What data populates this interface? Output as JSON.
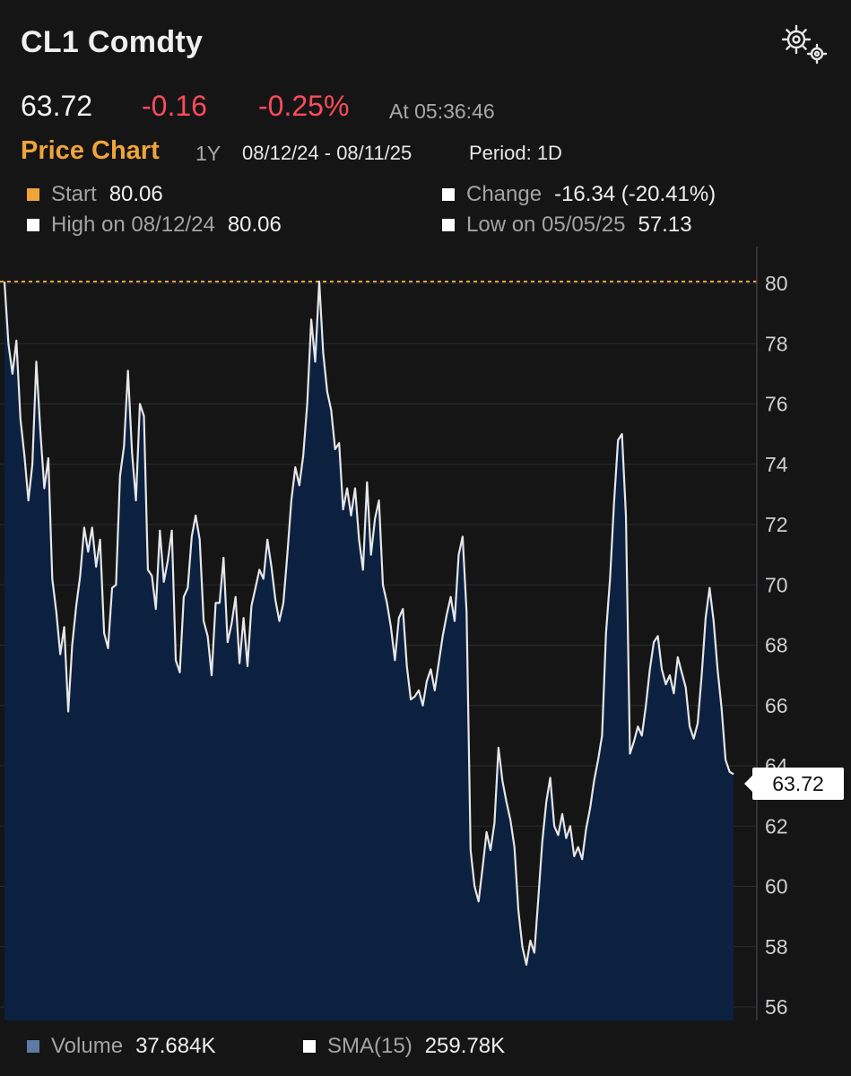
{
  "header": {
    "title": "CL1 Comdty",
    "settings_icon": "gear-icon"
  },
  "quote": {
    "last": "63.72",
    "change": "-0.16",
    "change_pct": "-0.25%",
    "as_of": "At 05:36:46"
  },
  "chart_header": {
    "title": "Price Chart",
    "range": "1Y",
    "dates": "08/12/24 - 08/11/25",
    "period": "Period: 1D"
  },
  "stats": {
    "start_label": "Start",
    "start_value": "80.06",
    "change_label": "Change",
    "change_value": "-16.34 (-20.41%)",
    "high_label": "High on 08/12/24",
    "high_value": "80.06",
    "low_label": "Low on 05/05/25",
    "low_value": "57.13"
  },
  "colors": {
    "start_marker": "#f0a43a",
    "negative": "#ff4a5c",
    "area_fill": "#0c2040",
    "line": "#e6e6e6",
    "volume_marker": "#5b7aa6"
  },
  "price_tag": "63.72",
  "footer": {
    "volume_label": "Volume",
    "volume_value": "37.684K",
    "sma_label": "SMA(15)",
    "sma_value": "259.78K"
  },
  "chart_data": {
    "type": "area",
    "start_reference": 80.06,
    "y_ticks": [
      "80",
      "78",
      "76",
      "74",
      "72",
      "70",
      "68",
      "66",
      "64",
      "62",
      "60",
      "58",
      "56"
    ],
    "ylim": [
      55.6,
      81.2
    ],
    "x_range": [
      "08/12/24",
      "08/11/25"
    ],
    "values": [
      80.06,
      78.0,
      77.0,
      78.1,
      75.5,
      74.3,
      72.8,
      74.0,
      77.4,
      75.1,
      73.2,
      74.2,
      70.2,
      69.1,
      67.7,
      68.6,
      65.8,
      68.0,
      69.3,
      70.3,
      71.9,
      71.1,
      71.9,
      70.6,
      71.5,
      68.4,
      67.9,
      69.9,
      70.0,
      73.6,
      74.6,
      77.1,
      74.4,
      72.8,
      76.0,
      75.6,
      70.5,
      70.3,
      69.2,
      71.8,
      70.1,
      70.8,
      71.8,
      67.5,
      67.1,
      69.6,
      69.9,
      71.6,
      72.3,
      71.5,
      68.8,
      68.3,
      67.0,
      69.4,
      69.4,
      70.9,
      68.1,
      68.7,
      69.6,
      67.4,
      68.9,
      67.3,
      69.3,
      69.9,
      70.5,
      70.2,
      71.5,
      70.6,
      69.5,
      68.8,
      69.4,
      71.0,
      72.8,
      73.9,
      73.3,
      74.3,
      76.0,
      78.8,
      77.4,
      80.06,
      77.7,
      76.4,
      75.8,
      74.5,
      74.7,
      72.5,
      73.2,
      72.3,
      73.2,
      71.5,
      70.5,
      73.4,
      71.0,
      72.2,
      72.8,
      70.0,
      69.4,
      68.6,
      67.5,
      68.9,
      69.2,
      67.3,
      66.2,
      66.3,
      66.5,
      66.0,
      66.8,
      67.2,
      66.5,
      67.4,
      68.3,
      69.0,
      69.6,
      68.8,
      71.0,
      71.6,
      69.1,
      61.2,
      60.0,
      59.5,
      60.6,
      61.8,
      61.2,
      62.1,
      64.6,
      63.5,
      62.8,
      62.2,
      61.3,
      59.2,
      58.0,
      57.4,
      58.2,
      57.8,
      59.6,
      61.5,
      62.8,
      63.6,
      62.0,
      61.7,
      62.4,
      61.6,
      62.0,
      61.0,
      61.3,
      60.9,
      61.9,
      62.6,
      63.5,
      64.2,
      65.0,
      68.4,
      70.2,
      72.7,
      74.8,
      75.0,
      72.3,
      64.4,
      64.8,
      65.3,
      65.0,
      66.0,
      67.2,
      68.1,
      68.3,
      67.2,
      66.7,
      67.0,
      66.4,
      67.6,
      67.1,
      66.6,
      65.3,
      64.9,
      65.4,
      67.0,
      68.9,
      69.9,
      68.8,
      67.2,
      65.9,
      64.2,
      63.8,
      63.72
    ]
  }
}
